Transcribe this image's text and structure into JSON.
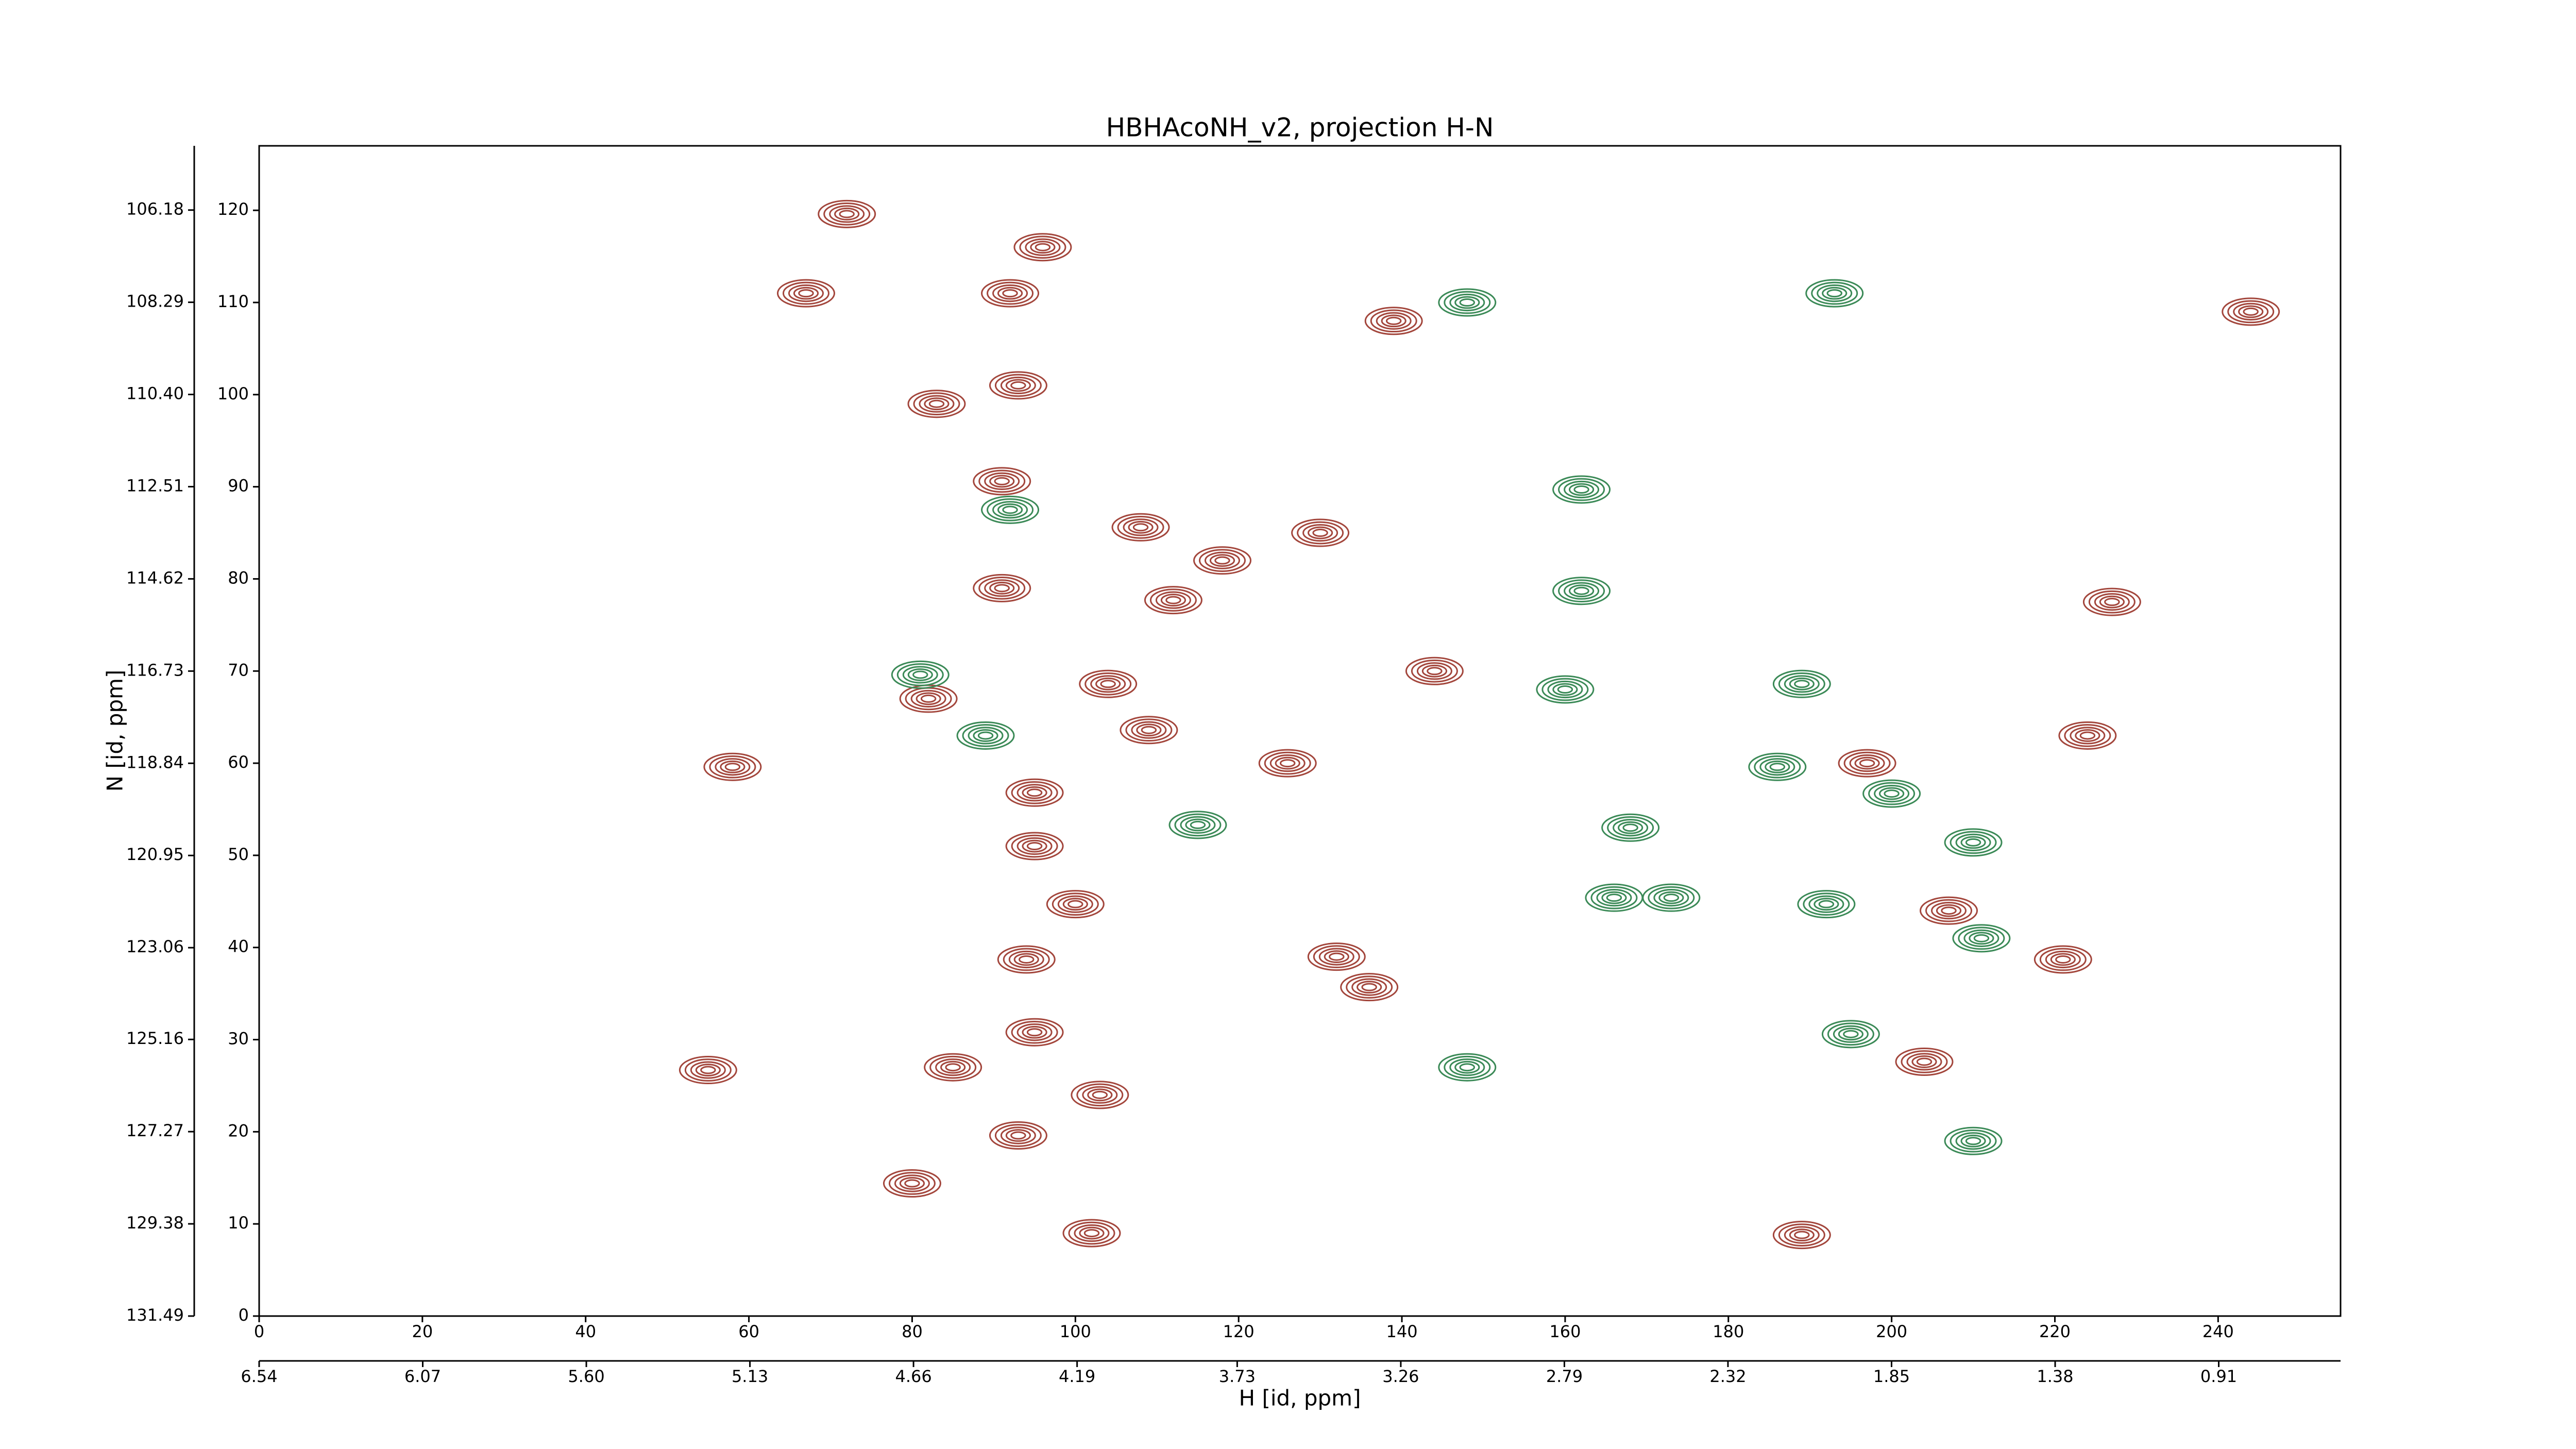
{
  "chart_data": {
    "type": "contour",
    "title": "HBHAcoNH_v2, projection H-N",
    "xlabel": "H [id, ppm]",
    "ylabel": "N [id, ppm]",
    "xlim": [
      0,
      255
    ],
    "ylim": [
      0,
      127
    ],
    "xticks": [
      0,
      20,
      40,
      60,
      80,
      100,
      120,
      140,
      160,
      180,
      200,
      220,
      240
    ],
    "yticks": [
      0,
      10,
      20,
      30,
      40,
      50,
      60,
      70,
      80,
      90,
      100,
      110,
      120
    ],
    "x2lim": [
      6.54,
      0.56
    ],
    "x2ticks": [
      6.54,
      6.07,
      {
        "value": 5.6,
        "label": "5.60"
      },
      5.13,
      4.66,
      4.19,
      3.73,
      3.26,
      2.79,
      2.32,
      1.85,
      1.38,
      0.91
    ],
    "y2lim": [
      131.49,
      104.71
    ],
    "y2ticks": [
      106.18,
      108.29,
      {
        "value": 110.4,
        "label": "110.40"
      },
      112.51,
      114.62,
      116.73,
      118.84,
      120.95,
      123.06,
      125.16,
      127.27,
      129.38,
      131.49
    ],
    "series": [
      {
        "color": "#a3463c",
        "x": [
          83,
          72,
          67,
          96,
          92,
          139,
          244,
          93,
          91,
          118,
          108,
          130,
          91,
          112,
          227,
          144,
          104,
          82,
          224,
          58,
          109,
          126,
          95,
          95,
          94,
          100,
          136,
          132,
          95,
          85,
          55,
          103,
          93,
          102,
          80,
          221,
          189,
          207,
          204,
          197
        ],
        "y": [
          99,
          119.6,
          111,
          116,
          111,
          108,
          109,
          101,
          90.6,
          82,
          85.6,
          85,
          79,
          77.7,
          77.5,
          70,
          68.6,
          67,
          63,
          59.6,
          63.6,
          60,
          56.8,
          51,
          38.7,
          44.7,
          35.7,
          39,
          30.8,
          27,
          26.7,
          24,
          19.6,
          9,
          14.4,
          38.7,
          8.8,
          44,
          27.6,
          60
        ]
      },
      {
        "color": "#3b8a57",
        "x": [
          148,
          115,
          210,
          160,
          162,
          162,
          189,
          192,
          211,
          210,
          195,
          89,
          168,
          173,
          166,
          193,
          148,
          92,
          200,
          186,
          81
        ],
        "y": [
          27,
          53.3,
          51.4,
          68,
          78.7,
          89.7,
          68.6,
          44.7,
          41,
          19,
          30.6,
          63,
          53,
          45.4,
          45.4,
          111,
          110,
          87.5,
          56.7,
          59.6,
          69.6
        ]
      }
    ]
  }
}
